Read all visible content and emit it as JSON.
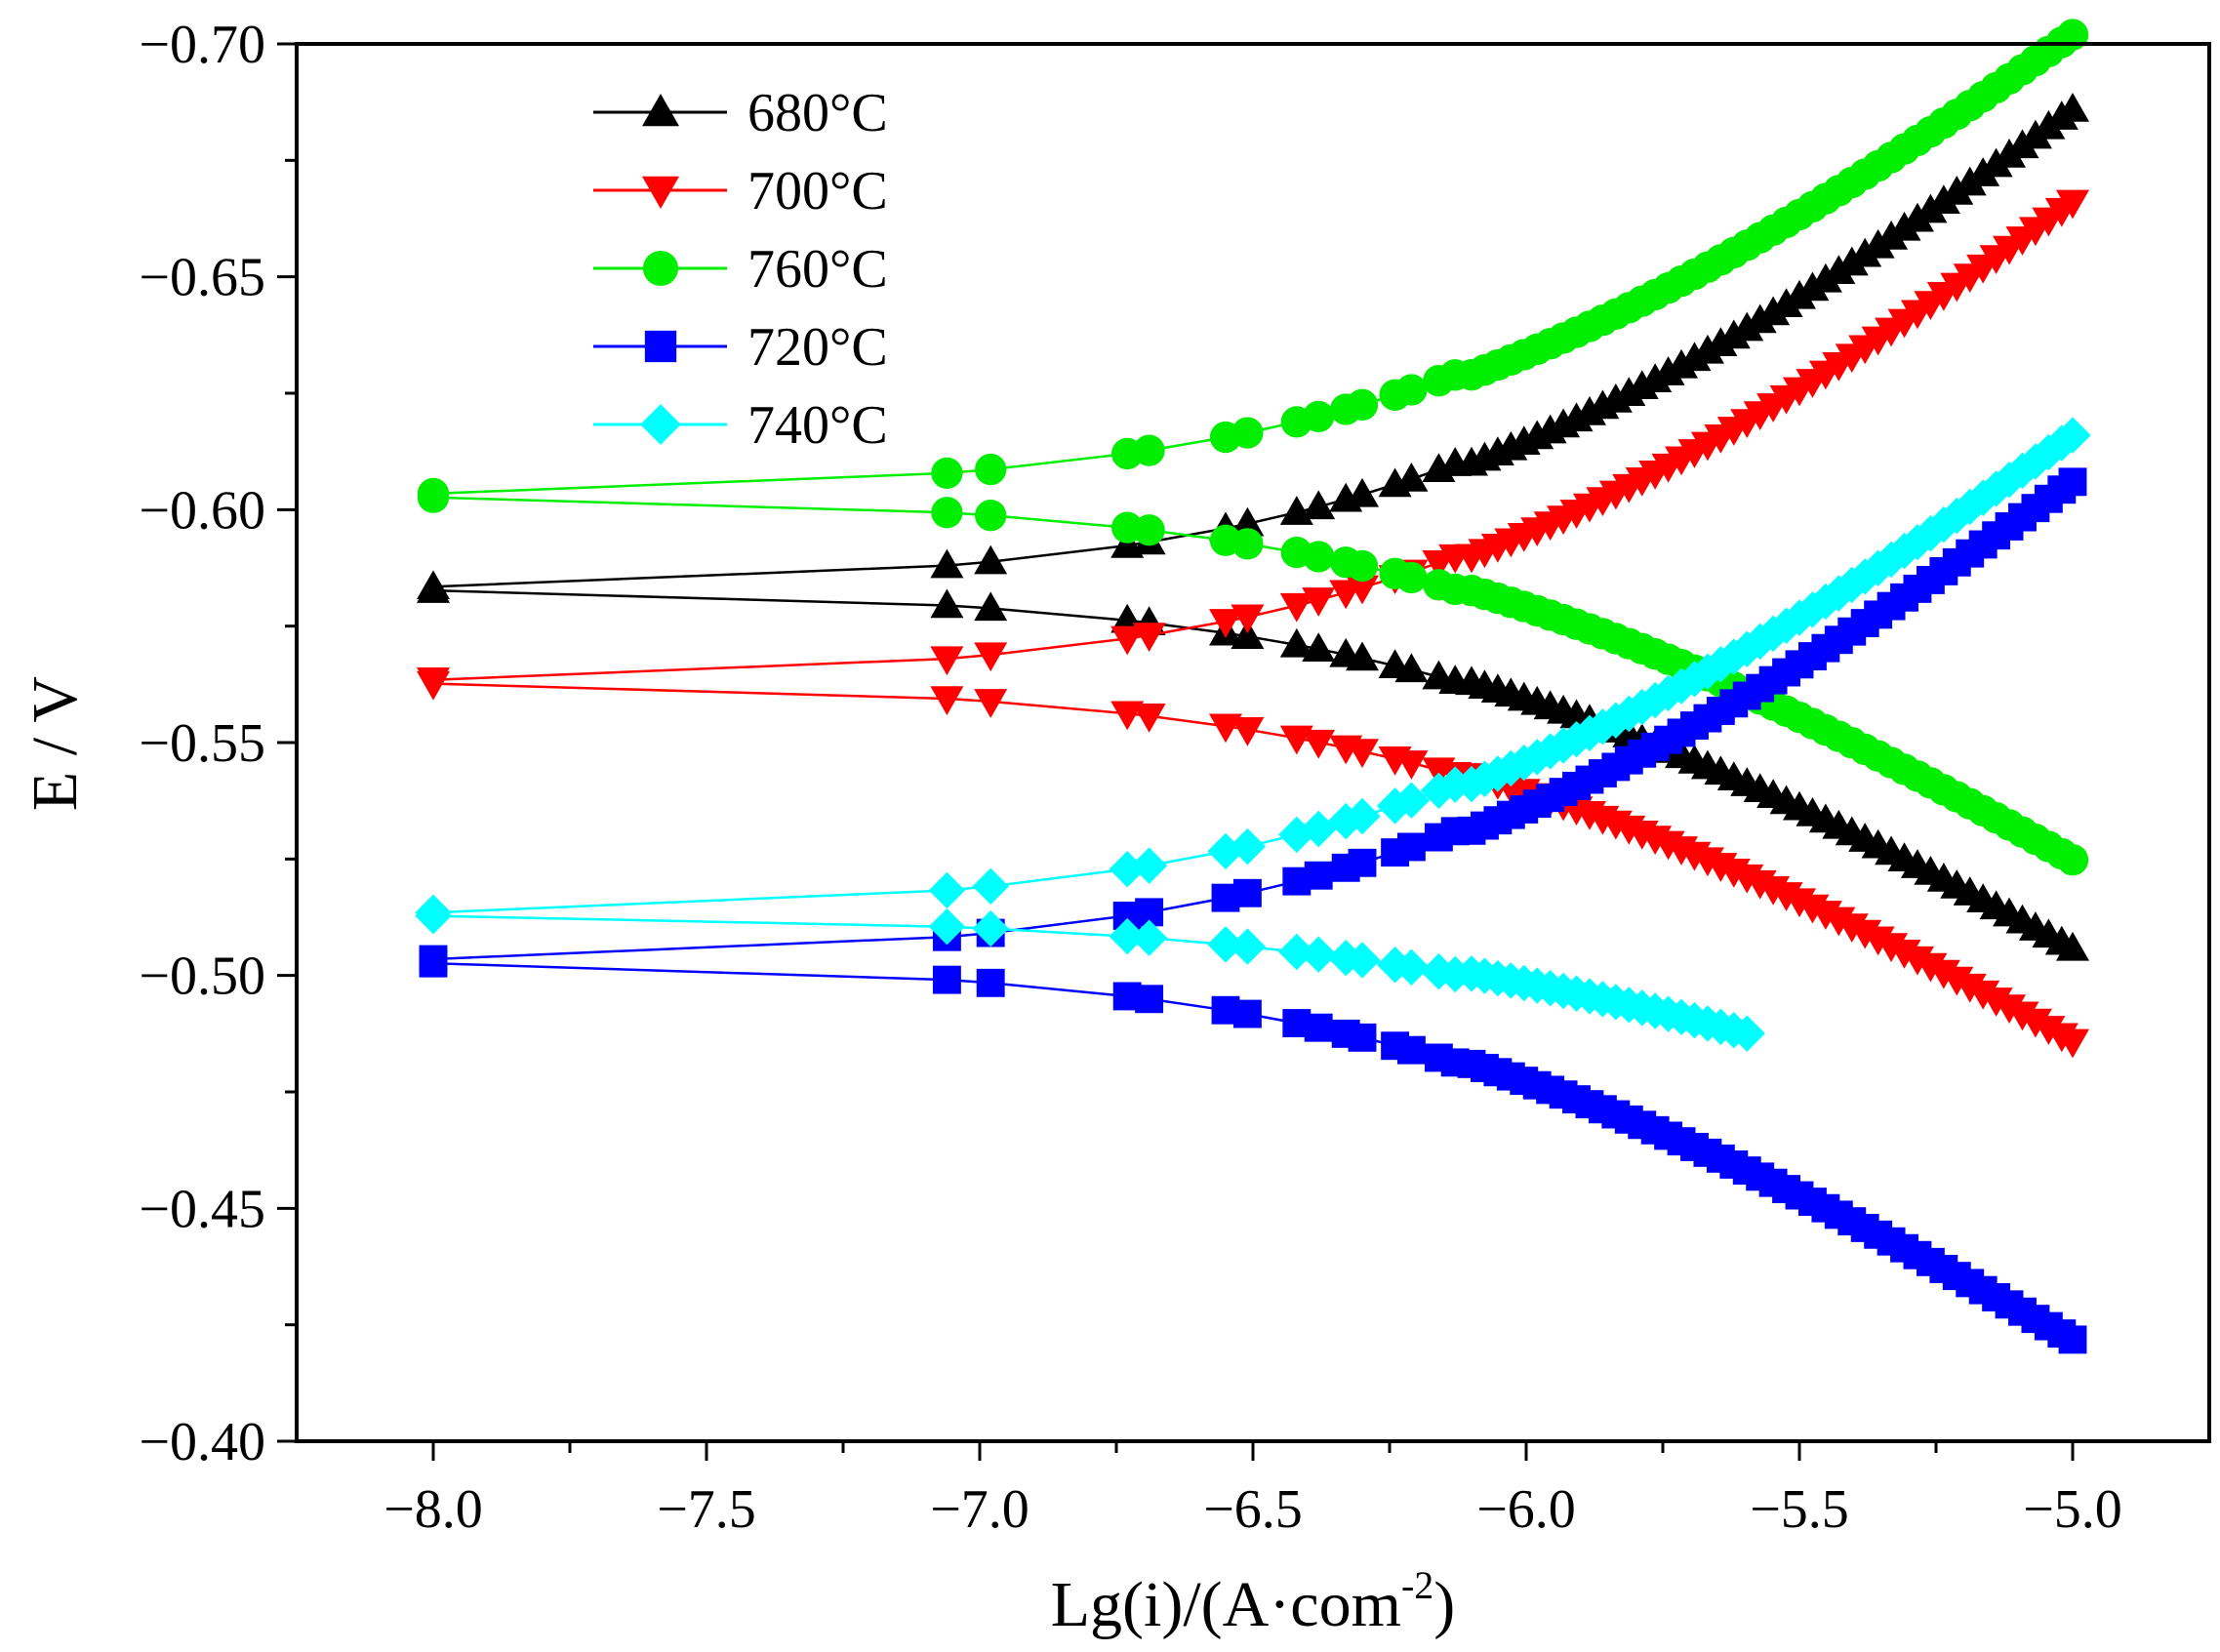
{
  "chart_data": {
    "type": "line",
    "title": "",
    "xlabel": "Lg(i)/(A·com",
    "xlabel_superscript": "-2",
    "xlabel_close": ")",
    "ylabel": "E / V",
    "xlim": [
      -8.25,
      -4.75
    ],
    "ylim": [
      -0.4,
      -0.7
    ],
    "y_axis_inverted": true,
    "x_ticks": [
      -8.0,
      -7.5,
      -7.0,
      -6.5,
      -6.0,
      -5.5,
      -5.0
    ],
    "x_tick_labels": [
      "−8.0",
      "−7.5",
      "−7.0",
      "−6.5",
      "−6.0",
      "−5.5",
      "−5.0"
    ],
    "y_ticks": [
      -0.7,
      -0.65,
      -0.6,
      -0.55,
      -0.5,
      -0.45,
      -0.4
    ],
    "y_tick_labels": [
      "−0.70",
      "−0.65",
      "−0.60",
      "−0.55",
      "−0.50",
      "−0.45",
      "−0.40"
    ],
    "legend_position": "top-left",
    "grid": false,
    "series": [
      {
        "name": "680°C",
        "color": "#000000",
        "marker": "triangle-up",
        "x_start": -5.0,
        "x_end": -8.0,
        "E_start": -0.507,
        "E_corr": -0.583,
        "E_end": -0.684,
        "i_corr_log": -6.05,
        "beta_c": 0.18,
        "beta_a": 0.16
      },
      {
        "name": "700°C",
        "color": "#ff0000",
        "marker": "triangle-down",
        "x_start": -5.0,
        "x_end": -8.0,
        "E_start": -0.487,
        "E_corr": -0.563,
        "E_end": -0.664,
        "i_corr_log": -6.05,
        "beta_c": 0.18,
        "beta_a": 0.16
      },
      {
        "name": "760°C",
        "color": "#00ee00",
        "marker": "circle",
        "x_start": -5.0,
        "x_end": -8.0,
        "E_start": -0.526,
        "E_corr": -0.603,
        "E_end": -0.7,
        "i_corr_log": -6.05,
        "beta_c": 0.17,
        "beta_a": 0.13
      },
      {
        "name": "720°C",
        "color": "#0000ff",
        "marker": "square",
        "x_start": -5.0,
        "x_end": -8.0,
        "E_start": -0.423,
        "E_corr": -0.503,
        "E_end": -0.604,
        "i_corr_log": -6.1,
        "beta_c": 0.11,
        "beta_a": 0.16
      },
      {
        "name": "740°C",
        "color": "#00ffff",
        "marker": "diamond",
        "x_start": -5.58,
        "x_end": -8.0,
        "E_start": -0.488,
        "E_corr": -0.513,
        "E_end": -0.614,
        "i_corr_log": -6.1,
        "beta_c": 0.08,
        "beta_a": 0.17
      }
    ]
  }
}
